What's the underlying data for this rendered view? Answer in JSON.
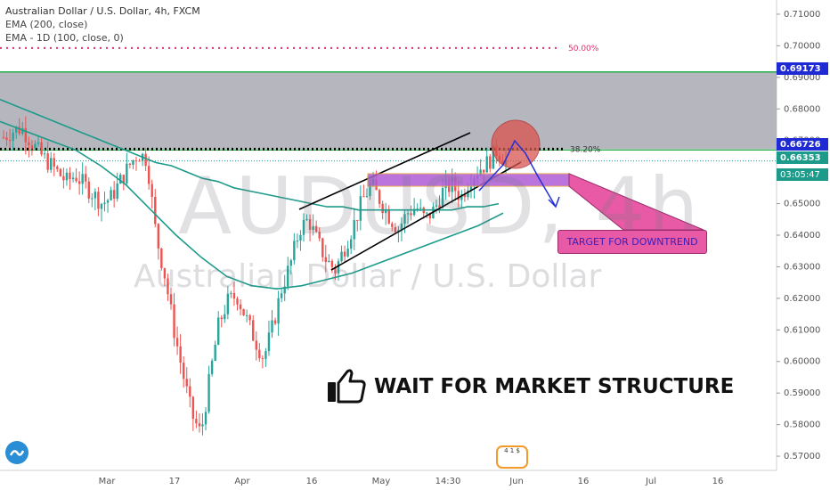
{
  "header": {
    "title": "Australian Dollar / U.S. Dollar, 4h, FXCM",
    "ema200": "EMA (200, close)",
    "ema1d": "EMA - 1D (100, close, 0)"
  },
  "watermark": {
    "symbol": "AUDUSD, 4h",
    "name": "Australian Dollar / U.S. Dollar"
  },
  "annotations": {
    "target": "TARGET FOR DOWNTREND",
    "wait": "WAIT FOR MARKET STRUCTURE",
    "fib_50": "50.00%",
    "fib_382": "38.20%"
  },
  "price_tags": {
    "upper": "0.69173",
    "fib": "0.66726",
    "last": "0.66353",
    "timer": "03:05:47"
  },
  "news_badge": "4 1 $",
  "colors": {
    "up": "#26a69a",
    "down": "#ef5350",
    "ema": "#1c9a8a",
    "channel": "#000000",
    "zone": "#b05cd6",
    "band": "#a9a9b3",
    "green_line": "#22b04a",
    "fib_line": "#e0306a",
    "arrow": "#2330d8",
    "circle": "#d9534f"
  },
  "chart_data": {
    "type": "candlestick",
    "title": "Australian Dollar / U.S. Dollar, 4h, FXCM",
    "y_ticks": [
      0.71,
      0.7,
      0.69,
      0.68,
      0.67,
      0.66,
      0.65,
      0.64,
      0.63,
      0.62,
      0.61,
      0.6,
      0.59,
      0.58,
      0.57
    ],
    "ylim": [
      0.5655,
      0.7145
    ],
    "x_ticks": [
      "Mar",
      "17",
      "Apr",
      "16",
      "May",
      "14:30",
      "Jun",
      "16",
      "Jul",
      "16"
    ],
    "series_close": [
      0.671,
      0.673,
      0.674,
      0.67,
      0.666,
      0.663,
      0.66,
      0.657,
      0.659,
      0.656,
      0.653,
      0.65,
      0.652,
      0.657,
      0.662,
      0.666,
      0.664,
      0.64,
      0.627,
      0.61,
      0.596,
      0.583,
      0.577,
      0.595,
      0.612,
      0.619,
      0.621,
      0.614,
      0.607,
      0.601,
      0.611,
      0.623,
      0.631,
      0.642,
      0.645,
      0.638,
      0.632,
      0.629,
      0.636,
      0.643,
      0.651,
      0.656,
      0.651,
      0.646,
      0.642,
      0.647,
      0.649,
      0.645,
      0.648,
      0.654,
      0.656,
      0.652,
      0.658,
      0.661,
      0.663,
      0.667,
      0.6635
    ],
    "ema200": [
      0.683,
      0.681,
      0.679,
      0.677,
      0.675,
      0.673,
      0.671,
      0.669,
      0.667,
      0.665,
      0.663,
      0.662,
      0.66,
      0.658,
      0.657,
      0.655,
      0.654,
      0.653,
      0.652,
      0.651,
      0.65,
      0.649,
      0.649,
      0.648,
      0.648,
      0.648,
      0.648,
      0.648,
      0.648,
      0.648,
      0.649,
      0.649,
      0.65
    ],
    "ema1d_100": [
      0.676,
      0.673,
      0.67,
      0.667,
      0.662,
      0.656,
      0.648,
      0.64,
      0.633,
      0.627,
      0.624,
      0.623,
      0.624,
      0.626,
      0.628,
      0.631,
      0.634,
      0.637,
      0.64,
      0.643,
      0.647
    ],
    "levels": {
      "upper_green": 0.69173,
      "fib_382": 0.66726,
      "last_price": 0.66353,
      "fib_50": 0.6993
    },
    "zone": [
      0.6555,
      0.6595
    ],
    "band": [
      0.66726,
      0.69173
    ]
  }
}
